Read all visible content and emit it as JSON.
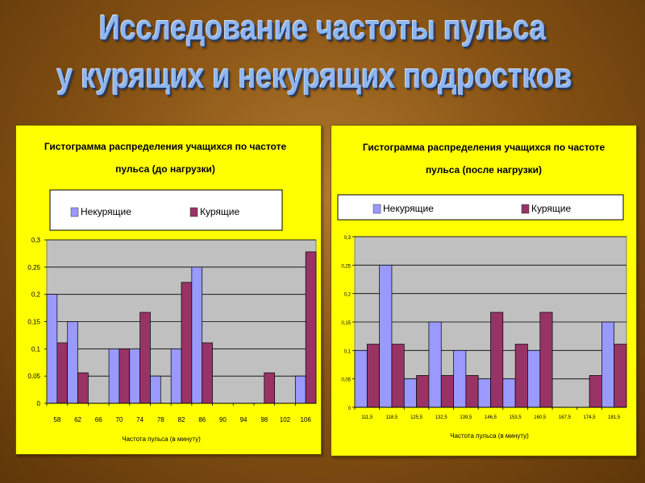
{
  "slide": {
    "title_line1": "Исследование частоты пульса",
    "title_line2": "у курящих и некурящих подростков"
  },
  "colors": {
    "nonsmokers": "#9999ff",
    "smokers": "#993366",
    "panel": "#ffff00",
    "plot_area": "#c0c0c0",
    "title": "#8fb6f0"
  },
  "chart_data": [
    {
      "type": "bar",
      "title_line1": "Гистограмма распределения учащихся по частоте",
      "title_line2": "пульса (до нагрузки)",
      "xlabel": "Частота пульса (в минуту)",
      "ylabel": "",
      "ylim": [
        0,
        0.3
      ],
      "yticks": [
        "0",
        "0,05",
        "0,1",
        "0,15",
        "0,2",
        "0,25",
        "0,3"
      ],
      "categories": [
        "58",
        "62",
        "66",
        "70",
        "74",
        "78",
        "82",
        "86",
        "90",
        "94",
        "98",
        "102",
        "106"
      ],
      "legend_position": "top",
      "series": [
        {
          "name": "Некурящие",
          "values": [
            0.2,
            0.15,
            0,
            0.1,
            0.1,
            0.05,
            0.1,
            0.25,
            0,
            0,
            0,
            0,
            0.05
          ]
        },
        {
          "name": "Курящие",
          "values": [
            0.111,
            0.056,
            0,
            0.1,
            0.167,
            0,
            0.222,
            0.111,
            0,
            0,
            0.056,
            0,
            0.278
          ]
        }
      ]
    },
    {
      "type": "bar",
      "title_line1": "Гистограмма распределения учащихся по частоте",
      "title_line2": "пульса (после нагрузки)",
      "xlabel": "Частота пульса (в минуту)",
      "ylabel": "",
      "ylim": [
        0,
        0.3
      ],
      "yticks": [
        "0",
        "0,05",
        "0,1",
        "0,15",
        "0,2",
        "0,25",
        "0,3"
      ],
      "categories": [
        "111,5",
        "118,5",
        "125,5",
        "132,5",
        "139,5",
        "146,5",
        "153,5",
        "160,5",
        "167,5",
        "174,5",
        "181,5"
      ],
      "legend_position": "top",
      "series": [
        {
          "name": "Некурящие",
          "values": [
            0.1,
            0.25,
            0.05,
            0.15,
            0.1,
            0.05,
            0.05,
            0.1,
            0,
            0,
            0.15
          ]
        },
        {
          "name": "Курящие",
          "values": [
            0.111,
            0.111,
            0.056,
            0.056,
            0.056,
            0.167,
            0.111,
            0.167,
            0,
            0.056,
            0.111
          ]
        }
      ]
    }
  ]
}
